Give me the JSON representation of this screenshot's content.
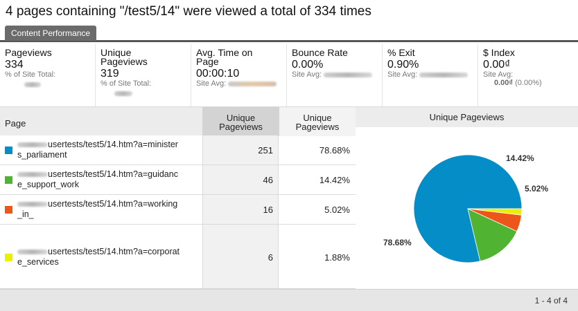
{
  "headline": "4 pages containing \"/test5/14\" were viewed a total of 334 times",
  "tab": "Content Performance",
  "metrics": {
    "pageviews": {
      "label": "Pageviews",
      "value": "334",
      "sub": "% of Site Total:"
    },
    "unique": {
      "label1": "Unique",
      "label2": "Pageviews",
      "value": "319",
      "sub": "% of Site Total:"
    },
    "avgtime": {
      "label1": "Avg. Time on",
      "label2": "Page",
      "value": "00:00:10",
      "sub": "Site Avg:"
    },
    "bounce": {
      "label": "Bounce Rate",
      "value": "0.00%",
      "sub": "Site Avg:"
    },
    "exit": {
      "label": "% Exit",
      "value": "0.90%",
      "sub": "Site Avg:"
    },
    "index": {
      "label": "$ Index",
      "value": "0.00₫",
      "sub": "Site Avg:",
      "sub2_value": "0.00₫",
      "sub2_pct": "(0.00%)"
    }
  },
  "table": {
    "col_page": "Page",
    "col_sorted": {
      "line1": "Unique",
      "line2": "Pageviews"
    },
    "col_pct": {
      "line1": "Unique",
      "line2": "Pageviews"
    },
    "rows": [
      {
        "line1": "usertests/test5/14.htm?a=minister",
        "line2": "s_parliament",
        "value": "251",
        "pct": "78.68%",
        "color": "#058dc7"
      },
      {
        "line1": "usertests/test5/14.htm?a=guidanc",
        "line2": "e_support_work",
        "value": "46",
        "pct": "14.42%",
        "color": "#50b432"
      },
      {
        "line1": "usertests/test5/14.htm?a=working",
        "line2": "_in_",
        "value": "16",
        "pct": "5.02%",
        "color": "#ed561b"
      },
      {
        "line1": "usertests/test5/14.htm?a=corporat",
        "line2": "e_services",
        "value": "6",
        "pct": "1.88%",
        "color": "#edef00"
      }
    ]
  },
  "pie": {
    "title": "Unique Pageviews",
    "labels": [
      "78.68%",
      "14.42%",
      "5.02%"
    ]
  },
  "chart_data": {
    "type": "pie",
    "title": "Unique Pageviews",
    "categories": [
      "ministers_parliament",
      "guidance_support_work",
      "working_in_",
      "corporate_services"
    ],
    "values": [
      78.68,
      14.42,
      5.02,
      1.88
    ],
    "colors": [
      "#058dc7",
      "#50b432",
      "#ed561b",
      "#edef00"
    ]
  },
  "footer": {
    "pager": "1 - 4 of 4"
  }
}
